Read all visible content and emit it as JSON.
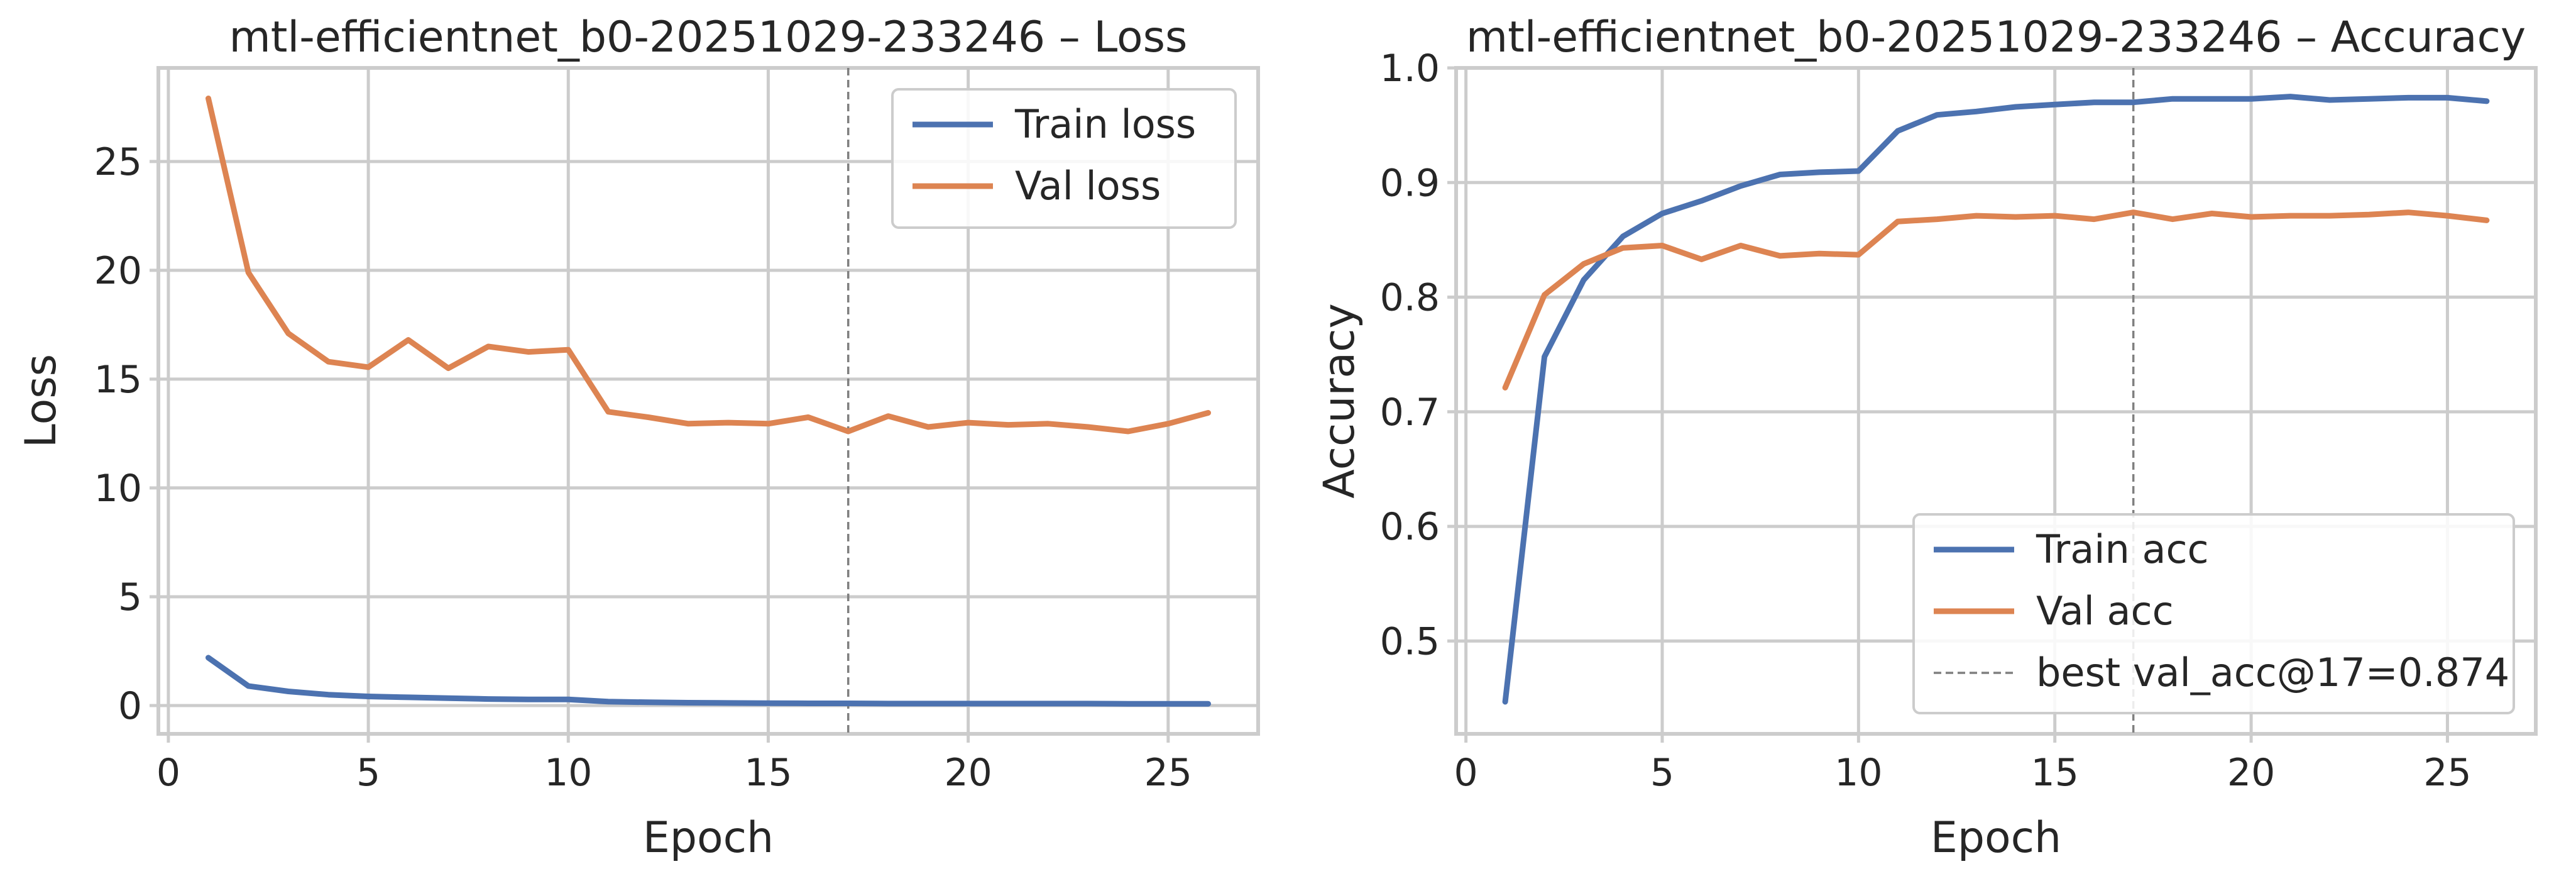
{
  "colors": {
    "train": "#4c72b0",
    "val": "#dd8452",
    "best_line": "#7f7f7f",
    "grid": "#cccccc",
    "text": "#262626"
  },
  "chart_data": [
    {
      "type": "line",
      "title": "mtl-efficientnet_b0-20251029-233246 – Loss",
      "xlabel": "Epoch",
      "ylabel": "Loss",
      "xlim": [
        -0.25,
        27.25
      ],
      "ylim": [
        -1.3,
        29.3
      ],
      "xticks": [
        0,
        5,
        10,
        15,
        20,
        25
      ],
      "yticks": [
        0,
        5,
        10,
        15,
        20,
        25
      ],
      "grid": true,
      "legend_position": "top-right",
      "vline": {
        "x": 17
      },
      "x": [
        1,
        2,
        3,
        4,
        5,
        6,
        7,
        8,
        9,
        10,
        11,
        12,
        13,
        14,
        15,
        16,
        17,
        18,
        19,
        20,
        21,
        22,
        23,
        24,
        25,
        26
      ],
      "series": [
        {
          "name": "Train loss",
          "color_key": "train",
          "values": [
            2.2,
            0.9,
            0.65,
            0.5,
            0.42,
            0.38,
            0.34,
            0.3,
            0.28,
            0.28,
            0.18,
            0.15,
            0.13,
            0.12,
            0.11,
            0.1,
            0.1,
            0.09,
            0.09,
            0.09,
            0.09,
            0.09,
            0.09,
            0.08,
            0.08,
            0.08
          ]
        },
        {
          "name": "Val loss",
          "color_key": "val",
          "values": [
            27.9,
            19.9,
            17.1,
            15.8,
            15.55,
            16.8,
            15.5,
            16.5,
            16.25,
            16.35,
            13.5,
            13.25,
            12.95,
            13.0,
            12.95,
            13.25,
            12.6,
            13.3,
            12.8,
            13.0,
            12.9,
            12.95,
            12.8,
            12.6,
            12.95,
            13.45
          ]
        }
      ]
    },
    {
      "type": "line",
      "title": "mtl-efficientnet_b0-20251029-233246 – Accuracy",
      "xlabel": "Epoch",
      "ylabel": "Accuracy",
      "xlim": [
        -0.25,
        27.25
      ],
      "ylim": [
        0.419,
        1.0
      ],
      "xticks": [
        0,
        5,
        10,
        15,
        20,
        25
      ],
      "yticks": [
        0.5,
        0.6,
        0.7,
        0.8,
        0.9,
        1.0
      ],
      "ytick_labels": [
        "0.5",
        "0.6",
        "0.7",
        "0.8",
        "0.9",
        "1.0"
      ],
      "grid": true,
      "legend_position": "lower-right",
      "vline": {
        "x": 17,
        "label": "best val_acc@17=0.874"
      },
      "x": [
        1,
        2,
        3,
        4,
        5,
        6,
        7,
        8,
        9,
        10,
        11,
        12,
        13,
        14,
        15,
        16,
        17,
        18,
        19,
        20,
        21,
        22,
        23,
        24,
        25,
        26
      ],
      "series": [
        {
          "name": "Train acc",
          "color_key": "train",
          "values": [
            0.447,
            0.748,
            0.815,
            0.853,
            0.873,
            0.884,
            0.897,
            0.907,
            0.909,
            0.91,
            0.945,
            0.959,
            0.962,
            0.966,
            0.968,
            0.97,
            0.97,
            0.973,
            0.973,
            0.973,
            0.975,
            0.972,
            0.973,
            0.974,
            0.974,
            0.971
          ]
        },
        {
          "name": "Val acc",
          "color_key": "val",
          "values": [
            0.721,
            0.802,
            0.829,
            0.843,
            0.845,
            0.833,
            0.845,
            0.836,
            0.838,
            0.837,
            0.866,
            0.868,
            0.871,
            0.87,
            0.871,
            0.868,
            0.874,
            0.868,
            0.873,
            0.87,
            0.871,
            0.871,
            0.872,
            0.874,
            0.871,
            0.867
          ]
        }
      ]
    }
  ]
}
